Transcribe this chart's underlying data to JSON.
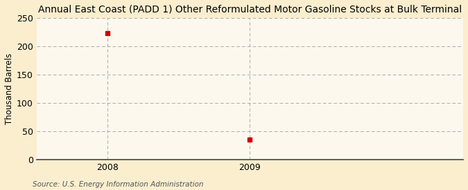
{
  "title": "Annual East Coast (PADD 1) Other Reformulated Motor Gasoline Stocks at Bulk Terminal",
  "ylabel": "Thousand Barrels",
  "source": "Source: U.S. Energy Information Administration",
  "x": [
    2008,
    2009
  ],
  "y": [
    224,
    35
  ],
  "marker_color": "#cc0000",
  "marker": "s",
  "marker_size": 4,
  "xlim": [
    2007.5,
    2010.5
  ],
  "ylim": [
    0,
    250
  ],
  "yticks": [
    0,
    50,
    100,
    150,
    200,
    250
  ],
  "xticks": [
    2008,
    2009
  ],
  "background_color": "#faeecf",
  "plot_bg_color": "#fdf8ee",
  "grid_color": "#999999",
  "title_fontsize": 10,
  "label_fontsize": 8.5,
  "tick_fontsize": 9,
  "source_fontsize": 7.5
}
